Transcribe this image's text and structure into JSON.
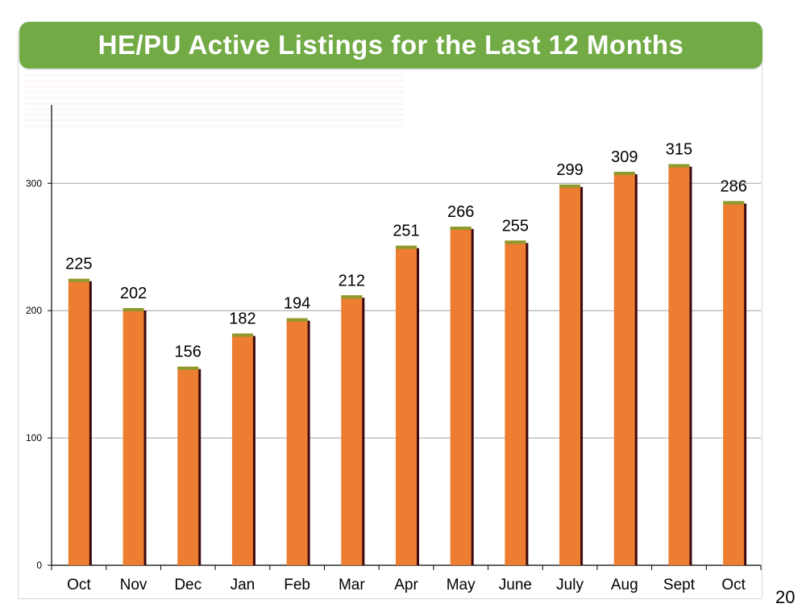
{
  "slide": {
    "title": "HE/PU Active Listings for the Last 12 Months",
    "page_number": "20"
  },
  "colors": {
    "title_background": "#72ab46",
    "title_text": "#ffffff",
    "bar_fill": "#ec7d31",
    "bar_shadow": "#3b0a10",
    "bar_top": "#8f9a2d",
    "gridline": "#a0a0a0"
  },
  "chart_data": {
    "type": "bar",
    "title": "HE/PU Active Listings for the Last 12 Months",
    "categories": [
      "Oct",
      "Nov",
      "Dec",
      "Jan",
      "Feb",
      "Mar",
      "Apr",
      "May",
      "June",
      "July",
      "Aug",
      "Sept",
      "Oct"
    ],
    "values": [
      225,
      202,
      156,
      182,
      194,
      212,
      251,
      266,
      255,
      299,
      309,
      315,
      286
    ],
    "xlabel": "",
    "ylabel": "",
    "ylim": [
      0,
      350
    ],
    "yticks": [
      0,
      100,
      200,
      300
    ],
    "grid": true,
    "data_labels": true,
    "legend": "none"
  }
}
